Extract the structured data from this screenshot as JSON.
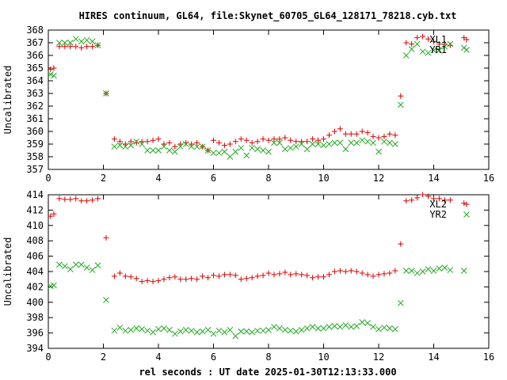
{
  "title": "HIRES continuum, GL64, file:Skynet_60705_GL64_128171_78218.cyb.txt",
  "xlabel": "rel seconds : UT date 2025-01-30T12:13:33.000",
  "colors": {
    "red": "#dd0000",
    "green": "#22aa22"
  },
  "chart_data": [
    {
      "type": "scatter",
      "ylabel": "Uncalibrated",
      "xlim": [
        0,
        16
      ],
      "ylim": [
        357,
        368
      ],
      "xticks": [
        0,
        2,
        4,
        6,
        8,
        10,
        12,
        14,
        16
      ],
      "yticks": [
        357,
        358,
        359,
        360,
        361,
        362,
        363,
        364,
        365,
        366,
        367,
        368
      ],
      "legend": "top-right",
      "series": [
        {
          "name": "XL1",
          "marker": "plus",
          "color": "#dd0000",
          "x": [
            0.08,
            0.2,
            0.4,
            0.6,
            0.8,
            1.0,
            1.2,
            1.4,
            1.6,
            1.8,
            2.1,
            2.4,
            2.6,
            2.8,
            3.0,
            3.2,
            3.4,
            3.6,
            3.8,
            4.0,
            4.2,
            4.4,
            4.6,
            4.8,
            5.0,
            5.2,
            5.4,
            5.6,
            5.8,
            6.0,
            6.2,
            6.4,
            6.6,
            6.8,
            7.0,
            7.2,
            7.4,
            7.6,
            7.8,
            8.0,
            8.2,
            8.4,
            8.6,
            8.8,
            9.0,
            9.2,
            9.4,
            9.6,
            9.8,
            10.0,
            10.2,
            10.4,
            10.6,
            10.8,
            11.0,
            11.2,
            11.4,
            11.6,
            11.8,
            12.0,
            12.2,
            12.4,
            12.6,
            12.8,
            13.0,
            13.2,
            13.4,
            13.6,
            13.8,
            14.0,
            14.2,
            14.4,
            14.6,
            15.1
          ],
          "y": [
            364.9,
            365.0,
            366.7,
            366.7,
            366.7,
            366.7,
            366.6,
            366.7,
            366.7,
            366.8,
            363.0,
            359.4,
            359.2,
            359.0,
            359.2,
            359.1,
            359.2,
            359.2,
            359.3,
            359.4,
            359.0,
            359.1,
            358.8,
            359.0,
            359.1,
            359.0,
            359.1,
            358.8,
            358.5,
            359.3,
            359.1,
            358.9,
            359.0,
            359.2,
            359.4,
            359.3,
            359.1,
            359.2,
            359.4,
            359.3,
            359.4,
            359.4,
            359.5,
            359.3,
            359.2,
            359.2,
            359.2,
            359.4,
            359.3,
            359.4,
            359.7,
            360.0,
            360.2,
            359.8,
            359.8,
            359.8,
            360.0,
            359.9,
            359.6,
            359.5,
            359.6,
            359.8,
            359.7,
            362.8,
            367.0,
            366.9,
            367.4,
            367.5,
            367.3,
            367.1,
            366.9,
            366.9,
            366.8,
            367.4
          ]
        },
        {
          "name": "YR1",
          "marker": "cross",
          "color": "#22aa22",
          "x": [
            0.08,
            0.2,
            0.4,
            0.6,
            0.8,
            1.0,
            1.2,
            1.4,
            1.6,
            1.8,
            2.1,
            2.4,
            2.6,
            2.8,
            3.0,
            3.2,
            3.4,
            3.6,
            3.8,
            4.0,
            4.2,
            4.4,
            4.6,
            4.8,
            5.0,
            5.2,
            5.4,
            5.6,
            5.8,
            6.0,
            6.2,
            6.4,
            6.6,
            6.8,
            7.0,
            7.2,
            7.4,
            7.6,
            7.8,
            8.0,
            8.2,
            8.4,
            8.6,
            8.8,
            9.0,
            9.2,
            9.4,
            9.6,
            9.8,
            10.0,
            10.2,
            10.4,
            10.6,
            10.8,
            11.0,
            11.2,
            11.4,
            11.6,
            11.8,
            12.0,
            12.2,
            12.4,
            12.6,
            12.8,
            13.0,
            13.2,
            13.4,
            13.6,
            13.8,
            14.0,
            14.2,
            14.4,
            14.6,
            15.1
          ],
          "y": [
            364.5,
            364.4,
            367.0,
            367.0,
            367.0,
            367.3,
            367.1,
            367.2,
            367.1,
            366.8,
            363.0,
            358.8,
            358.9,
            358.8,
            358.9,
            359.2,
            359.0,
            358.5,
            358.5,
            358.5,
            358.8,
            358.5,
            358.4,
            358.8,
            359.0,
            358.8,
            358.8,
            358.8,
            358.5,
            358.3,
            358.3,
            358.4,
            358.0,
            358.4,
            358.7,
            358.1,
            358.7,
            358.6,
            358.5,
            358.4,
            359.1,
            359.1,
            358.6,
            358.7,
            358.8,
            359.0,
            358.6,
            359.0,
            359.0,
            358.9,
            359.0,
            359.1,
            359.1,
            358.6,
            359.1,
            359.1,
            359.3,
            359.2,
            359.1,
            358.4,
            359.2,
            359.1,
            359.0,
            362.1,
            366.0,
            366.5,
            366.9,
            366.3,
            366.2,
            366.4,
            366.4,
            366.7,
            366.9,
            366.6
          ]
        }
      ]
    },
    {
      "type": "scatter",
      "ylabel": "Uncalibrated",
      "xlim": [
        0,
        16
      ],
      "ylim": [
        394,
        414
      ],
      "xticks": [
        0,
        2,
        4,
        6,
        8,
        10,
        12,
        14,
        16
      ],
      "yticks": [
        394,
        396,
        398,
        400,
        402,
        404,
        406,
        408,
        410,
        412,
        414
      ],
      "legend": "top-right",
      "series": [
        {
          "name": "XL2",
          "marker": "plus",
          "color": "#dd0000",
          "x": [
            0.08,
            0.2,
            0.4,
            0.6,
            0.8,
            1.0,
            1.2,
            1.4,
            1.6,
            1.8,
            2.1,
            2.4,
            2.6,
            2.8,
            3.0,
            3.2,
            3.4,
            3.6,
            3.8,
            4.0,
            4.2,
            4.4,
            4.6,
            4.8,
            5.0,
            5.2,
            5.4,
            5.6,
            5.8,
            6.0,
            6.2,
            6.4,
            6.6,
            6.8,
            7.0,
            7.2,
            7.4,
            7.6,
            7.8,
            8.0,
            8.2,
            8.4,
            8.6,
            8.8,
            9.0,
            9.2,
            9.4,
            9.6,
            9.8,
            10.0,
            10.2,
            10.4,
            10.6,
            10.8,
            11.0,
            11.2,
            11.4,
            11.6,
            11.8,
            12.0,
            12.2,
            12.4,
            12.6,
            12.8,
            13.0,
            13.2,
            13.4,
            13.6,
            13.8,
            14.0,
            14.2,
            14.4,
            14.6,
            15.1
          ],
          "y": [
            411.2,
            411.5,
            413.5,
            413.4,
            413.4,
            413.5,
            413.2,
            413.2,
            413.3,
            413.5,
            408.4,
            403.4,
            403.8,
            403.4,
            403.3,
            403.1,
            402.7,
            402.8,
            402.7,
            402.8,
            403.0,
            403.2,
            403.3,
            403.0,
            403.0,
            403.1,
            403.0,
            403.4,
            403.2,
            403.5,
            403.4,
            403.6,
            403.6,
            403.5,
            403.0,
            403.1,
            403.2,
            403.4,
            403.5,
            403.8,
            403.6,
            403.7,
            403.9,
            403.6,
            403.7,
            403.6,
            403.5,
            403.2,
            403.3,
            403.3,
            403.6,
            404.0,
            404.1,
            404.0,
            404.1,
            404.0,
            403.8,
            403.6,
            403.4,
            403.6,
            403.7,
            403.8,
            404.1,
            407.6,
            413.2,
            413.3,
            413.6,
            414.0,
            413.8,
            413.5,
            413.5,
            413.3,
            413.3,
            412.9
          ]
        },
        {
          "name": "YR2",
          "marker": "cross",
          "color": "#22aa22",
          "x": [
            0.08,
            0.2,
            0.4,
            0.6,
            0.8,
            1.0,
            1.2,
            1.4,
            1.6,
            1.8,
            2.1,
            2.4,
            2.6,
            2.8,
            3.0,
            3.2,
            3.4,
            3.6,
            3.8,
            4.0,
            4.2,
            4.4,
            4.6,
            4.8,
            5.0,
            5.2,
            5.4,
            5.6,
            5.8,
            6.0,
            6.2,
            6.4,
            6.6,
            6.8,
            7.0,
            7.2,
            7.4,
            7.6,
            7.8,
            8.0,
            8.2,
            8.4,
            8.6,
            8.8,
            9.0,
            9.2,
            9.4,
            9.6,
            9.8,
            10.0,
            10.2,
            10.4,
            10.6,
            10.8,
            11.0,
            11.2,
            11.4,
            11.6,
            11.8,
            12.0,
            12.2,
            12.4,
            12.6,
            12.8,
            13.0,
            13.2,
            13.4,
            13.6,
            13.8,
            14.0,
            14.2,
            14.4,
            14.6,
            15.1
          ],
          "y": [
            402.1,
            402.2,
            404.9,
            404.7,
            404.3,
            404.9,
            404.9,
            404.5,
            404.2,
            404.8,
            400.3,
            396.3,
            396.7,
            396.3,
            396.4,
            396.6,
            396.5,
            396.3,
            396.1,
            396.5,
            396.6,
            396.4,
            395.9,
            396.2,
            396.4,
            396.3,
            396.1,
            396.2,
            396.4,
            395.9,
            396.3,
            396.1,
            396.4,
            395.6,
            396.2,
            396.2,
            396.1,
            396.3,
            396.3,
            396.4,
            396.8,
            396.6,
            396.4,
            396.3,
            396.2,
            396.4,
            396.6,
            396.8,
            396.6,
            396.6,
            396.8,
            396.9,
            396.8,
            397.0,
            396.8,
            396.9,
            397.4,
            397.3,
            396.8,
            396.5,
            396.7,
            396.6,
            396.5,
            399.9,
            404.1,
            404.1,
            403.8,
            404.0,
            404.3,
            404.1,
            404.4,
            404.5,
            404.2,
            404.1
          ]
        }
      ]
    }
  ]
}
